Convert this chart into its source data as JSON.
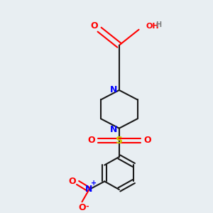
{
  "background_color": "#e8eef2",
  "bond_color": "#1a1a1a",
  "N_color": "#0000ff",
  "O_color": "#ff0000",
  "S_color": "#cccc00",
  "H_color": "#808080",
  "figsize": [
    3.0,
    3.0
  ],
  "dpi": 100,
  "xlim": [
    0,
    300
  ],
  "ylim": [
    0,
    300
  ]
}
